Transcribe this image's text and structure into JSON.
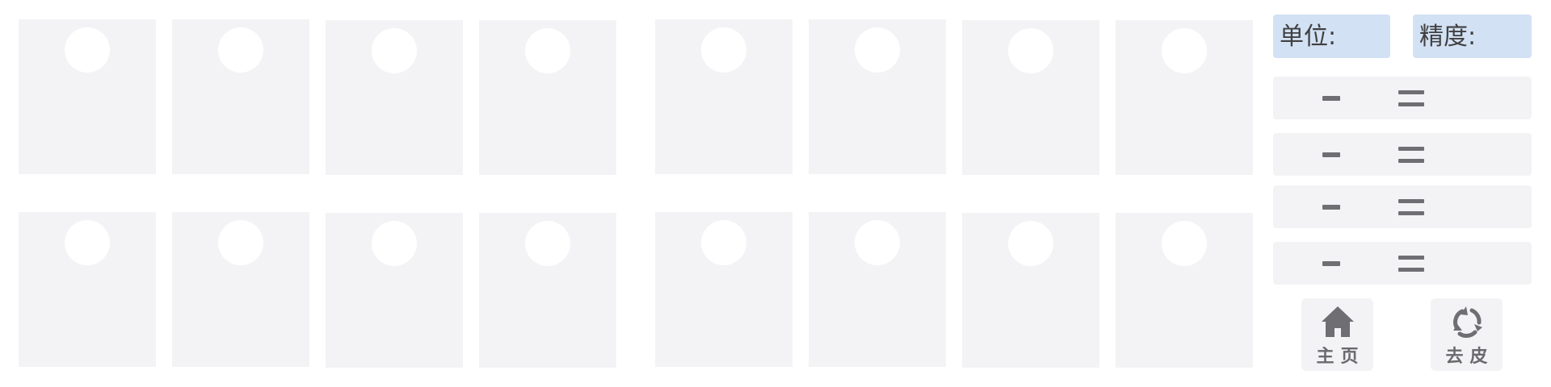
{
  "grid": {
    "cards_top": 8,
    "cards_bottom": 8
  },
  "panel": {
    "unit_label": "单位:",
    "precision_label": "精度:",
    "rows": [
      {
        "operator": "minus",
        "result": "equals"
      },
      {
        "operator": "minus",
        "result": "equals"
      },
      {
        "operator": "minus",
        "result": "equals"
      },
      {
        "operator": "minus",
        "result": "equals"
      }
    ],
    "buttons": {
      "home_label": "主页",
      "peel_label": "去皮"
    }
  },
  "colors": {
    "card_bg": "#f3f3f5",
    "accent_box": "#d3e1f4",
    "icon_gray": "#6f6f73"
  },
  "icons": {
    "home": "home-icon",
    "peel": "recycle-icon"
  }
}
